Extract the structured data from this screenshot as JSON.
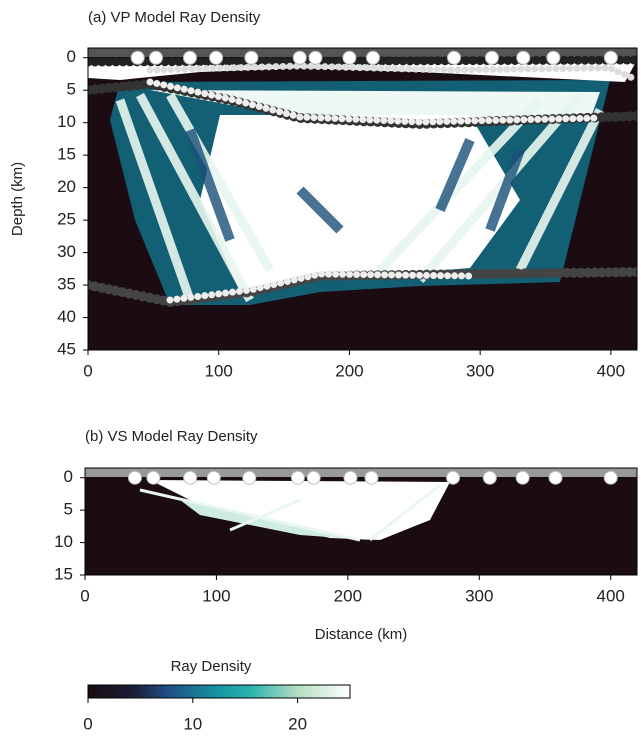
{
  "chart_data": [
    {
      "type": "heatmap",
      "title": "(a) VP Model Ray Density",
      "ylabel": "Depth (km)",
      "xlim": [
        0,
        420
      ],
      "ylim": [
        45,
        -1.5
      ],
      "xticks": [
        0,
        100,
        200,
        300,
        400
      ],
      "yticks": [
        0,
        5,
        10,
        15,
        20,
        25,
        30,
        35,
        40,
        45
      ],
      "stations": {
        "x": [
          38,
          52,
          78,
          98,
          125,
          162,
          174,
          200,
          218,
          280,
          309,
          333,
          356,
          400
        ],
        "y": [
          0,
          0,
          0,
          0,
          0,
          0,
          0,
          0,
          0,
          0,
          0,
          0,
          0,
          0
        ]
      }
    },
    {
      "type": "heatmap",
      "title": "(b) VS Model Ray Density",
      "xlabel": "Distance (km)",
      "xlim": [
        0,
        420
      ],
      "ylim": [
        15,
        -1.5
      ],
      "xticks": [
        0,
        100,
        200,
        300,
        400
      ],
      "yticks": [
        0,
        5,
        10,
        15
      ],
      "stations": {
        "x": [
          38,
          52,
          80,
          98,
          125,
          162,
          174,
          202,
          218,
          280,
          308,
          333,
          358,
          400
        ],
        "y": [
          0,
          0,
          0,
          0,
          0,
          0,
          0,
          0,
          0,
          0,
          0,
          0,
          0,
          0
        ]
      }
    },
    {
      "type": "colorbar",
      "title": "Ray Density",
      "xlim": [
        0,
        25
      ],
      "xticks": [
        0,
        10,
        20
      ]
    }
  ]
}
